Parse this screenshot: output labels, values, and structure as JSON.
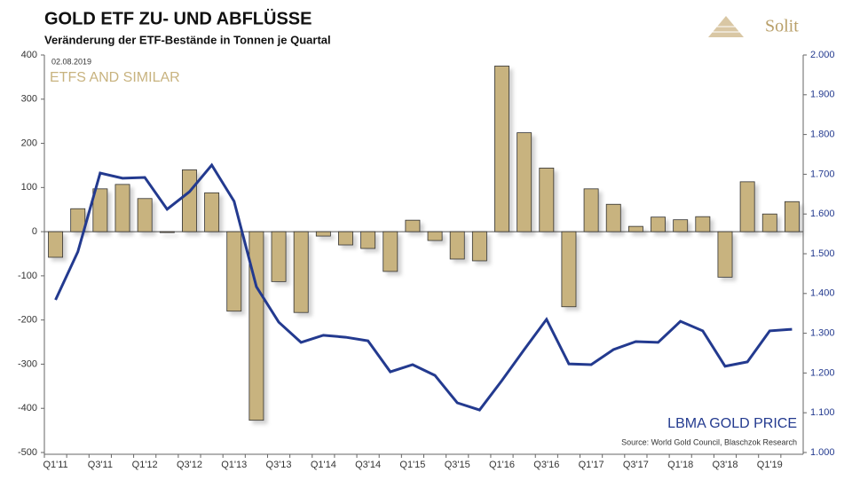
{
  "chart_data": {
    "type": "bar_line",
    "title": "GOLD ETF ZU- UND ABFLÜSSE",
    "subtitle": "Veränderung der ETF-Bestände in Tonnen je Quartal",
    "date": "02.08.2019",
    "source": "Source: World Gold Council, Blaschzok Research",
    "brand": "Solit",
    "categories": [
      "Q1'11",
      null,
      "Q3'11",
      null,
      "Q1'12",
      null,
      "Q3'12",
      null,
      "Q1'13",
      null,
      "Q3'13",
      null,
      "Q1'14",
      null,
      "Q3'14",
      null,
      "Q1'15",
      null,
      "Q3'15",
      null,
      "Q1'16",
      null,
      "Q3'16",
      null,
      "Q1'17",
      null,
      "Q3'17",
      null,
      "Q1'18",
      null,
      "Q3'18",
      null,
      "Q1'19",
      null
    ],
    "series": [
      {
        "name": "ETFS AND SIMILAR",
        "type": "bar",
        "color": "#c8b37f",
        "values": [
          -58,
          52,
          97,
          107,
          75,
          -2,
          140,
          88,
          -180,
          -427,
          -113,
          -183,
          -10,
          -30,
          -38,
          -90,
          26,
          -20,
          -62,
          -66,
          375,
          224,
          144,
          -170,
          97,
          62,
          12,
          33,
          27,
          34,
          -103,
          113,
          40,
          68
        ]
      },
      {
        "name": "LBMA GOLD PRICE",
        "type": "line",
        "axis": "y2",
        "color": "#233a8f",
        "values": [
          1384,
          1505,
          1703,
          1690,
          1692,
          1612,
          1656,
          1723,
          1632,
          1417,
          1328,
          1277,
          1295,
          1290,
          1281,
          1203,
          1221,
          1194,
          1125,
          1107,
          1181,
          1259,
          1335,
          1223,
          1221,
          1259,
          1279,
          1277,
          1330,
          1306,
          1217,
          1228,
          1306,
          1310
        ]
      }
    ],
    "ylim": [
      -500,
      400
    ],
    "yticks": [
      -500,
      -400,
      -300,
      -200,
      -100,
      0,
      100,
      200,
      300,
      400
    ],
    "y2lim": [
      1000,
      2000
    ],
    "y2ticks": [
      {
        "value": 1000,
        "label": "1.000"
      },
      {
        "value": 1100,
        "label": "1.100"
      },
      {
        "value": 1200,
        "label": "1.200"
      },
      {
        "value": 1300,
        "label": "1.300"
      },
      {
        "value": 1400,
        "label": "1.400"
      },
      {
        "value": 1500,
        "label": "1.500"
      },
      {
        "value": 1600,
        "label": "1.600"
      },
      {
        "value": 1700,
        "label": "1.700"
      },
      {
        "value": 1800,
        "label": "1.800"
      },
      {
        "value": 1900,
        "label": "1.900"
      },
      {
        "value": 2000,
        "label": "2.000"
      }
    ]
  }
}
